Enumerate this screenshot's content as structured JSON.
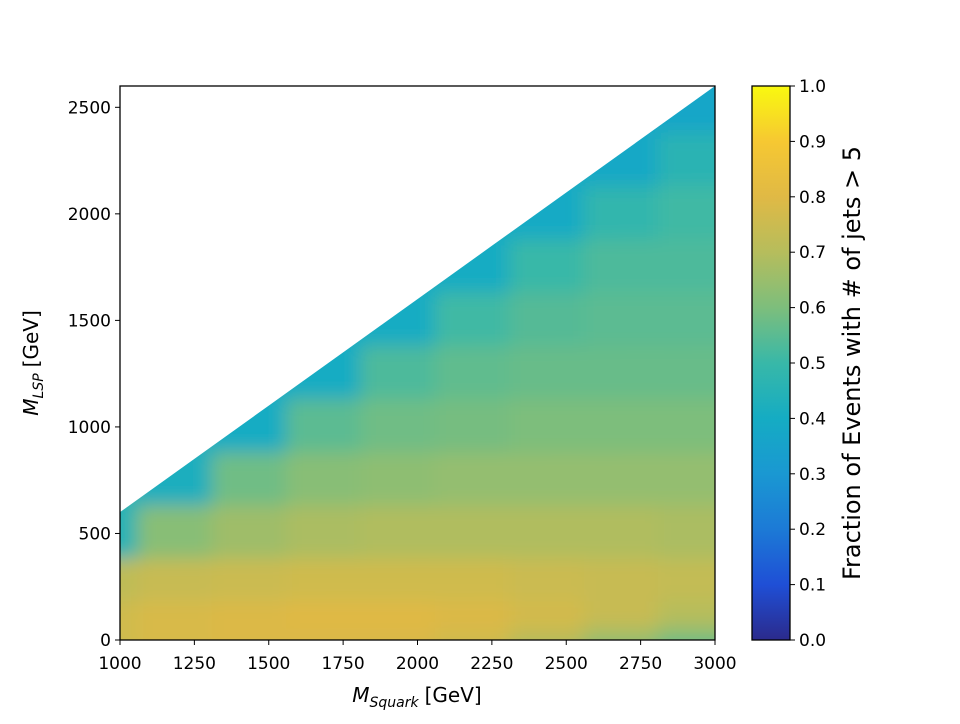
{
  "chart_data": {
    "type": "heatmap",
    "x_label": {
      "symbol": "M",
      "subscript": "Squark",
      "unit": "[GeV]"
    },
    "y_label": {
      "symbol": "M",
      "subscript": "LSP",
      "unit": "[GeV]"
    },
    "colorbar_label": "Fraction of Events with # of jets > 5",
    "x": [
      1000,
      1250,
      1500,
      1750,
      2000,
      2250,
      2500,
      2750,
      3000
    ],
    "y": [
      0,
      100,
      200,
      350,
      600,
      850,
      1100,
      1350,
      1600,
      1850,
      2100,
      2350,
      2600
    ],
    "z": [
      [
        0.74,
        0.76,
        0.77,
        0.77,
        0.75,
        0.7,
        0.62,
        0.55,
        0.5
      ],
      [
        0.76,
        0.78,
        0.79,
        0.79,
        0.79,
        0.77,
        0.72,
        0.66,
        0.6
      ],
      [
        0.76,
        0.78,
        0.79,
        0.8,
        0.8,
        0.79,
        0.77,
        0.74,
        0.7
      ],
      [
        0.72,
        0.74,
        0.75,
        0.76,
        0.76,
        0.76,
        0.75,
        0.74,
        0.73
      ],
      [
        0.45,
        0.62,
        0.66,
        0.68,
        0.69,
        0.69,
        0.69,
        0.69,
        0.68
      ],
      [
        null,
        0.42,
        0.58,
        0.62,
        0.63,
        0.64,
        0.64,
        0.64,
        0.64
      ],
      [
        null,
        null,
        0.4,
        0.55,
        0.58,
        0.59,
        0.6,
        0.6,
        0.6
      ],
      [
        null,
        null,
        null,
        0.4,
        0.53,
        0.56,
        0.57,
        0.57,
        0.57
      ],
      [
        null,
        null,
        null,
        null,
        0.4,
        0.51,
        0.54,
        0.55,
        0.55
      ],
      [
        null,
        null,
        null,
        null,
        null,
        0.4,
        0.5,
        0.53,
        0.53
      ],
      [
        null,
        null,
        null,
        null,
        null,
        null,
        0.39,
        0.48,
        0.51
      ],
      [
        null,
        null,
        null,
        null,
        null,
        null,
        null,
        0.38,
        0.46
      ],
      [
        null,
        null,
        null,
        null,
        null,
        null,
        null,
        null,
        0.37
      ]
    ],
    "xlim": [
      1000,
      3000
    ],
    "xticks": [
      1000,
      1250,
      1500,
      1750,
      2000,
      2250,
      2500,
      2750,
      3000
    ],
    "ylim": [
      0,
      2600
    ],
    "yticks": [
      0,
      500,
      1000,
      1500,
      2000,
      2500
    ],
    "clim": [
      0,
      1
    ],
    "cticks": [
      {
        "value": 0,
        "label": "0.0"
      },
      0.1,
      0.2,
      0.3,
      0.4,
      0.5,
      0.6,
      0.7,
      0.8,
      0.9,
      {
        "value": 1,
        "label": "1.0"
      }
    ],
    "colormap": [
      "#2b2a8c",
      "#1f4fd6",
      "#1c7ad6",
      "#1a98d2",
      "#15acc3",
      "#38b8a8",
      "#7dbe7c",
      "#b6bd5c",
      "#e0b945",
      "#f6c832",
      "#f9f90f"
    ]
  }
}
